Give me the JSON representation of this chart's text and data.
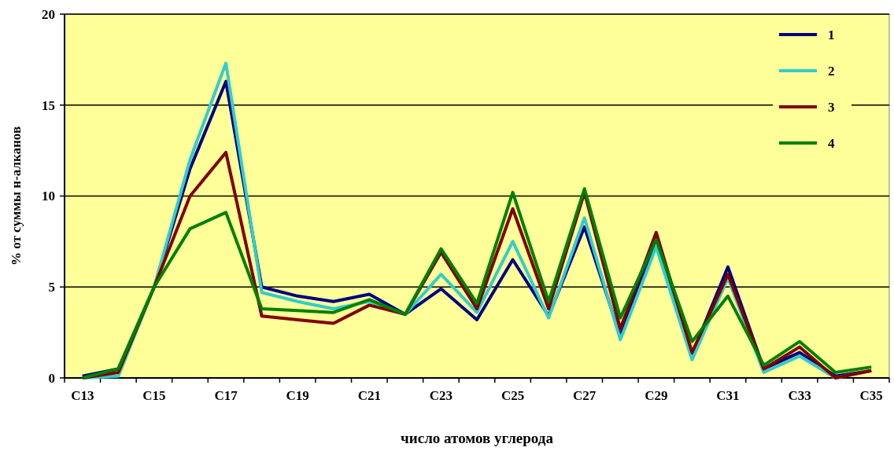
{
  "chart_data": {
    "type": "line",
    "xlabel": "число атомов углерода",
    "ylabel": "%  от суммы н-алканов",
    "categories": [
      "C13",
      null,
      "C15",
      null,
      "C17",
      null,
      "C19",
      null,
      "C21",
      null,
      "C23",
      null,
      "C25",
      null,
      "C27",
      null,
      "C29",
      null,
      "C31",
      null,
      "C33",
      null,
      "C35"
    ],
    "series": [
      {
        "name": "1",
        "color": "#000080",
        "values": [
          0.1,
          0.5,
          5.0,
          11.5,
          16.3,
          5.0,
          4.5,
          4.2,
          4.6,
          3.5,
          4.9,
          3.2,
          6.5,
          3.4,
          8.3,
          2.3,
          7.7,
          1.3,
          6.1,
          0.5,
          1.4,
          0.1,
          0.4
        ]
      },
      {
        "name": "2",
        "color": "#33cccc",
        "values": [
          0,
          0.1,
          5.0,
          12.0,
          17.3,
          4.7,
          4.2,
          3.8,
          4.2,
          3.5,
          5.7,
          3.6,
          7.5,
          3.3,
          8.8,
          2.1,
          7.2,
          1.0,
          5.5,
          0.3,
          1.2,
          0,
          0.4
        ]
      },
      {
        "name": "3",
        "color": "#800000",
        "values": [
          0,
          0.3,
          5.0,
          10.0,
          12.4,
          3.4,
          3.2,
          3.0,
          4.0,
          3.5,
          6.9,
          3.8,
          9.3,
          3.8,
          10.2,
          2.7,
          8.0,
          1.4,
          5.7,
          0.5,
          1.7,
          0,
          0.4
        ]
      },
      {
        "name": "4",
        "color": "#008000",
        "values": [
          0,
          0.5,
          5.0,
          8.2,
          9.1,
          3.8,
          3.7,
          3.6,
          4.3,
          3.5,
          7.1,
          4.1,
          10.2,
          4.2,
          10.4,
          3.3,
          7.6,
          2.0,
          4.5,
          0.7,
          2.0,
          0.3,
          0.6
        ]
      }
    ],
    "ylim": [
      0,
      20
    ],
    "yticks": [
      0,
      5,
      10,
      15,
      20
    ],
    "grid": "y",
    "legend": "top right",
    "marker": "none",
    "line_style": "solid"
  }
}
